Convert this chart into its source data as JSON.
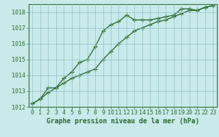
{
  "xlabel": "Graphe pression niveau de la mer (hPa)",
  "x": [
    0,
    1,
    2,
    3,
    4,
    5,
    6,
    7,
    8,
    9,
    10,
    11,
    12,
    13,
    14,
    15,
    16,
    17,
    18,
    19,
    20,
    21,
    22,
    23
  ],
  "line1": [
    1012.2,
    1012.5,
    1012.9,
    1013.2,
    1013.8,
    1014.2,
    1014.8,
    1015.0,
    1015.8,
    1016.8,
    1017.2,
    1017.4,
    1017.8,
    1017.5,
    1017.5,
    1017.5,
    1017.6,
    1017.7,
    1017.8,
    1018.2,
    1018.2,
    1018.1,
    1018.3,
    1018.4
  ],
  "line2": [
    1012.2,
    1012.5,
    1013.2,
    1013.2,
    1013.5,
    1013.8,
    1014.0,
    1014.2,
    1014.4,
    1015.0,
    1015.5,
    1016.0,
    1016.4,
    1016.8,
    1017.0,
    1017.2,
    1017.4,
    1017.5,
    1017.7,
    1017.9,
    1018.1,
    1018.1,
    1018.3,
    1018.4
  ],
  "line_color": "#2d6a2d",
  "bg_color": "#c8eaea",
  "plot_bg": "#c8eaea",
  "grid_color": "#8fbfbf",
  "border_color": "#2d6a2d",
  "ylim": [
    1012,
    1018.5
  ],
  "yticks": [
    1012,
    1013,
    1014,
    1015,
    1016,
    1017,
    1018
  ],
  "xticks": [
    0,
    1,
    2,
    3,
    4,
    5,
    6,
    7,
    8,
    9,
    10,
    11,
    12,
    13,
    14,
    15,
    16,
    17,
    18,
    19,
    20,
    21,
    22,
    23
  ],
  "marker": "+",
  "markersize": 4,
  "linewidth": 1.0,
  "label_fontsize": 7,
  "tick_fontsize": 6
}
